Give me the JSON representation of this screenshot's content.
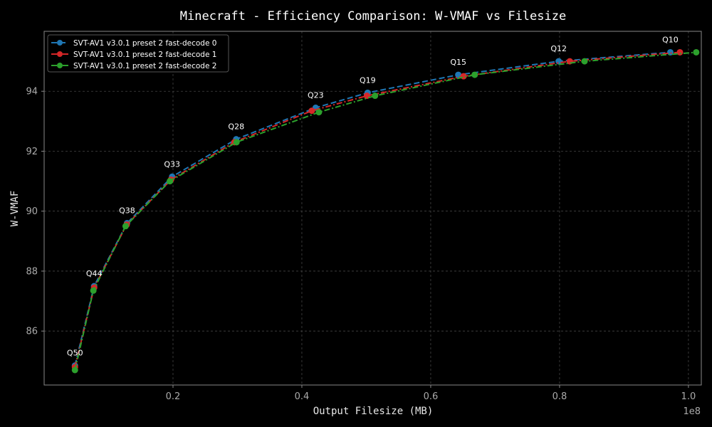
{
  "chart_data": {
    "type": "line",
    "title": "Minecraft - Efficiency Comparison: W-VMAF vs Filesize",
    "xlabel": "Output Filesize (MB)",
    "ylabel": "W-VMAF",
    "x_offset_text": "1e8",
    "xlim": [
      0.0,
      1.02
    ],
    "ylim": [
      84.2,
      96.0
    ],
    "x_ticks": [
      0.2,
      0.4,
      0.6,
      0.8,
      1.0
    ],
    "x_tick_labels": [
      "0.2",
      "0.4",
      "0.6",
      "0.8",
      "1.0"
    ],
    "y_ticks": [
      86,
      88,
      90,
      92,
      94
    ],
    "y_tick_labels": [
      "86",
      "88",
      "90",
      "92",
      "94"
    ],
    "grid": true,
    "legend_position": "top-left",
    "series": [
      {
        "name": "SVT-AV1 v3.0.1 preset 2 fast-decode 0",
        "color": "#1f77b4",
        "dash": "8,4",
        "x": [
          0.0478,
          0.0776,
          0.1287,
          0.1986,
          0.2981,
          0.4214,
          0.5021,
          0.6428,
          0.7986,
          0.9719
        ],
        "y": [
          84.85,
          87.5,
          89.6,
          91.15,
          92.4,
          93.45,
          93.95,
          94.55,
          95.0,
          95.3
        ]
      },
      {
        "name": "SVT-AV1 v3.0.1 preset 2 fast-decode 1",
        "color": "#d62728",
        "dash": "8,3,2,3",
        "x": [
          0.0478,
          0.0776,
          0.1281,
          0.1969,
          0.2953,
          0.4154,
          0.501,
          0.651,
          0.8158,
          0.9868
        ],
        "y": [
          84.8,
          87.45,
          89.55,
          91.05,
          92.3,
          93.35,
          93.85,
          94.5,
          95.0,
          95.3
        ]
      },
      {
        "name": "SVT-AV1 v3.0.1 preset 2 fast-decode 2",
        "color": "#2ca02c",
        "dash": "8,3,2,3",
        "x": [
          0.0478,
          0.0764,
          0.1264,
          0.1952,
          0.2986,
          0.4264,
          0.5136,
          0.6683,
          0.8388,
          1.0121
        ],
        "y": [
          84.7,
          87.35,
          89.5,
          91.0,
          92.3,
          93.3,
          93.85,
          94.55,
          95.0,
          95.3
        ]
      }
    ],
    "annotations": [
      {
        "text": "Q50",
        "x": 0.0478,
        "y": 84.85
      },
      {
        "text": "Q44",
        "x": 0.0776,
        "y": 87.5
      },
      {
        "text": "Q38",
        "x": 0.1287,
        "y": 89.6
      },
      {
        "text": "Q33",
        "x": 0.1986,
        "y": 91.15
      },
      {
        "text": "Q28",
        "x": 0.2981,
        "y": 92.4
      },
      {
        "text": "Q23",
        "x": 0.4214,
        "y": 93.45
      },
      {
        "text": "Q19",
        "x": 0.5021,
        "y": 93.95
      },
      {
        "text": "Q15",
        "x": 0.6428,
        "y": 94.55
      },
      {
        "text": "Q12",
        "x": 0.7986,
        "y": 95.0
      },
      {
        "text": "Q10",
        "x": 0.9719,
        "y": 95.3
      }
    ]
  },
  "colors": {
    "background": "#000000",
    "axes_frame": "#888888",
    "grid": "#444444",
    "text": "#e8e8e8",
    "tick_text": "#aaaaaa"
  }
}
